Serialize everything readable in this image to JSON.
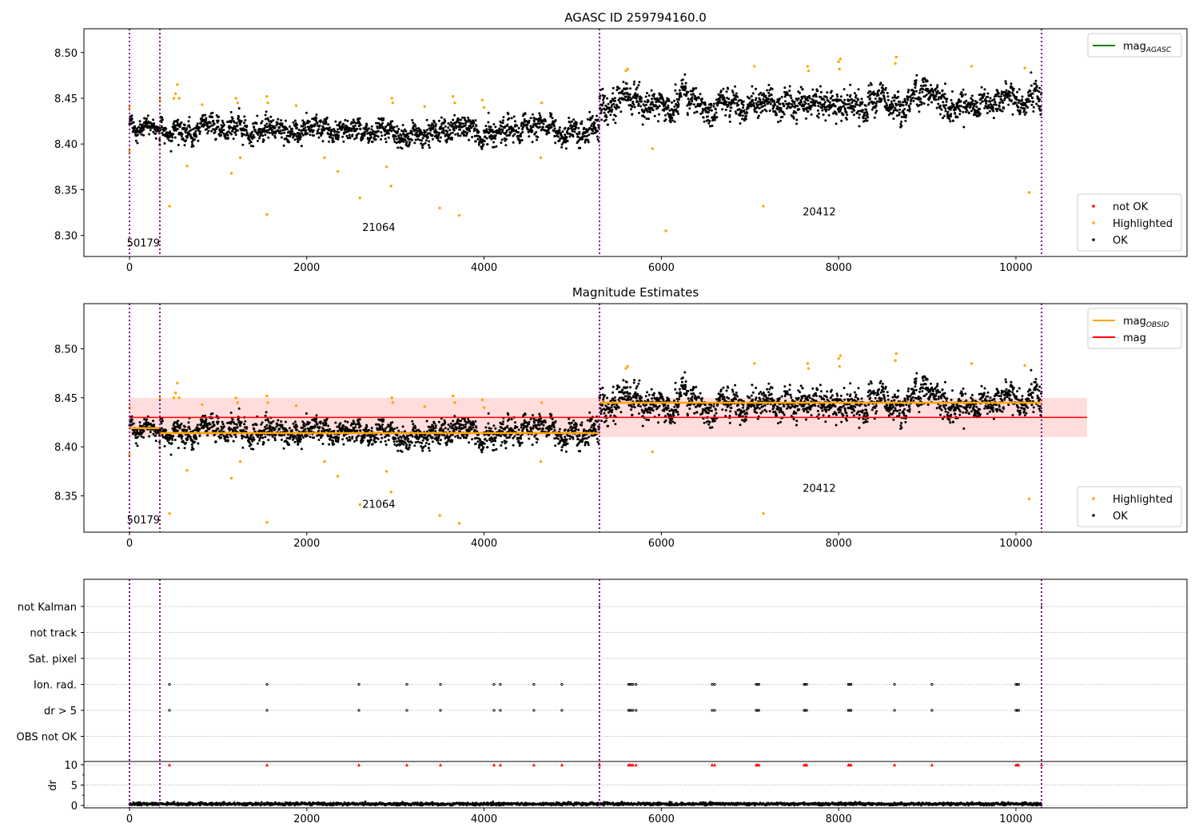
{
  "chart_data": [
    {
      "type": "scatter",
      "title": "AGASC ID 259794160.0",
      "xlim": [
        -514,
        11930
      ],
      "ylim": [
        8.277,
        8.526
      ],
      "xticks": [
        0,
        2000,
        4000,
        6000,
        8000,
        10000
      ],
      "yticks": [
        "8.30",
        "8.35",
        "8.40",
        "8.45",
        "8.50"
      ],
      "legend_upper": {
        "position": "top-right",
        "entries": [
          {
            "label": "mag",
            "sub": "AGASC",
            "color": "#008000"
          }
        ]
      },
      "legend_lower": {
        "position": "bottom-right",
        "entries": [
          {
            "label": "not OK",
            "color": "#ff0000"
          },
          {
            "label": "Highlighted",
            "color": "#ffa500"
          },
          {
            "label": "OK",
            "color": "#000000"
          }
        ]
      },
      "obsid_labels": [
        {
          "text": "50179",
          "x": -30,
          "y": 8.288
        },
        {
          "text": "21064",
          "x": 2626,
          "y": 8.305
        },
        {
          "text": "20412",
          "x": 7595,
          "y": 8.322
        }
      ]
    },
    {
      "type": "scatter",
      "title": "Magnitude Estimates",
      "xlim": [
        -514,
        11930
      ],
      "ylim": [
        8.313,
        8.546
      ],
      "xticks": [
        0,
        2000,
        4000,
        6000,
        8000,
        10000
      ],
      "yticks": [
        "8.35",
        "8.40",
        "8.45",
        "8.50"
      ],
      "legend_upper": {
        "position": "top-right",
        "entries": [
          {
            "label": "mag",
            "sub": "OBSID",
            "color": "#ffa500"
          },
          {
            "label": "mag",
            "sub": "",
            "color": "#ff0000"
          }
        ]
      },
      "legend_lower": {
        "position": "bottom-right",
        "entries": [
          {
            "label": "Highlighted",
            "color": "#ffa500"
          },
          {
            "label": "OK",
            "color": "#000000"
          }
        ]
      },
      "mag": 8.43,
      "mag_band": [
        8.41,
        8.45
      ],
      "band_x": [
        0,
        10803
      ],
      "obsid_labels": [
        {
          "text": "50179",
          "x": -30,
          "y": 8.322
        },
        {
          "text": "21064",
          "x": 2626,
          "y": 8.338
        },
        {
          "text": "20412",
          "x": 7595,
          "y": 8.354
        }
      ]
    },
    {
      "type": "scatter",
      "title": "",
      "categories": [
        "not Kalman",
        "not track",
        "Sat. pixel",
        "Ion. rad.",
        "dr > 5",
        "OBS not OK"
      ],
      "dr_ylabel": "dr",
      "dr_ylim": [
        -0.6,
        10.8
      ],
      "dr_yticks": [
        "0",
        "5",
        "10"
      ],
      "xticks": [
        0,
        2000,
        4000,
        6000,
        8000,
        10000
      ],
      "flag_x": [
        451,
        1551,
        2588,
        3129,
        3508,
        4112,
        4184,
        4562,
        4878,
        5630,
        5645,
        5660,
        5680,
        5715,
        6573,
        6601,
        7069,
        7085,
        7100,
        7610,
        7625,
        7640,
        8110,
        8125,
        8140,
        8630,
        9053,
        10000,
        10015,
        10030
      ],
      "not_kalman_x": [
        5302,
        10289
      ]
    }
  ],
  "obsids": [
    {
      "id": "50179",
      "start": 0,
      "end": 343,
      "mean": 8.419,
      "sigma": 0.007
    },
    {
      "id": "21064",
      "start": 343,
      "end": 5302,
      "mean": 8.414,
      "sigma": 0.009
    },
    {
      "id": "20412",
      "start": 5302,
      "end": 10289,
      "mean": 8.445,
      "sigma": 0.011
    }
  ],
  "obsid_boundaries": [
    0,
    343,
    5302,
    10289
  ],
  "highlighted": [
    [
      0,
      8.392
    ],
    [
      0,
      8.44
    ],
    [
      343,
      8.449
    ],
    [
      451,
      8.332
    ],
    [
      500,
      8.45
    ],
    [
      520,
      8.455
    ],
    [
      540,
      8.465
    ],
    [
      560,
      8.45
    ],
    [
      650,
      8.376
    ],
    [
      820,
      8.443
    ],
    [
      1150,
      8.368
    ],
    [
      1200,
      8.45
    ],
    [
      1220,
      8.445
    ],
    [
      1250,
      8.385
    ],
    [
      1550,
      8.323
    ],
    [
      1550,
      8.452
    ],
    [
      1560,
      8.445
    ],
    [
      1880,
      8.442
    ],
    [
      2200,
      8.385
    ],
    [
      2350,
      8.37
    ],
    [
      2600,
      8.341
    ],
    [
      2900,
      8.375
    ],
    [
      2950,
      8.354
    ],
    [
      2960,
      8.45
    ],
    [
      2970,
      8.445
    ],
    [
      3330,
      8.441
    ],
    [
      3500,
      8.33
    ],
    [
      3650,
      8.452
    ],
    [
      3670,
      8.445
    ],
    [
      3720,
      8.322
    ],
    [
      3980,
      8.448
    ],
    [
      4000,
      8.44
    ],
    [
      4650,
      8.445
    ],
    [
      4640,
      8.385
    ],
    [
      5600,
      8.48
    ],
    [
      5620,
      8.482
    ],
    [
      5900,
      8.395
    ],
    [
      6050,
      8.305
    ],
    [
      7050,
      8.485
    ],
    [
      7150,
      8.332
    ],
    [
      7650,
      8.485
    ],
    [
      7660,
      8.48
    ],
    [
      8000,
      8.49
    ],
    [
      8020,
      8.493
    ],
    [
      8010,
      8.482
    ],
    [
      8650,
      8.495
    ],
    [
      8640,
      8.488
    ],
    [
      9500,
      8.485
    ],
    [
      10100,
      8.483
    ],
    [
      10150,
      8.347
    ]
  ],
  "colors": {
    "ok": "#000000",
    "highlighted": "#ffa500",
    "not_ok": "#ff0000",
    "boundary": "#800080",
    "band": "#ffdddd"
  }
}
